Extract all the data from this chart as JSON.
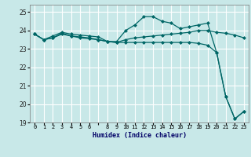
{
  "xlabel": "Humidex (Indice chaleur)",
  "background_color": "#c8e8e8",
  "grid_color": "#ffffff",
  "line_color": "#006666",
  "xlim": [
    -0.5,
    23.5
  ],
  "ylim": [
    19,
    25.4
  ],
  "yticks": [
    19,
    20,
    21,
    22,
    23,
    24,
    25
  ],
  "xtick_labels": [
    "0",
    "1",
    "2",
    "3",
    "4",
    "5",
    "6",
    "",
    "8",
    "9",
    "10",
    "11",
    "12",
    "13",
    "14",
    "15",
    "16",
    "17",
    "18",
    "19",
    "20",
    "21",
    "22",
    "23"
  ],
  "series": [
    [
      23.8,
      23.5,
      23.7,
      23.9,
      23.8,
      23.75,
      23.7,
      23.65,
      23.4,
      23.4,
      24.0,
      24.3,
      24.75,
      24.75,
      24.5,
      24.4,
      24.1,
      24.2,
      24.3,
      24.4,
      22.8,
      20.4,
      19.2,
      19.6
    ],
    [
      23.8,
      23.5,
      23.6,
      23.85,
      23.7,
      23.65,
      23.6,
      23.5,
      23.4,
      23.35,
      23.35,
      23.35,
      23.35,
      23.35,
      23.35,
      23.35,
      23.35,
      23.35,
      23.3,
      23.2,
      22.8,
      20.4,
      19.2,
      19.6
    ],
    [
      23.8,
      23.5,
      23.6,
      23.8,
      23.7,
      23.6,
      23.55,
      23.5,
      23.4,
      23.35,
      23.5,
      23.6,
      23.65,
      23.7,
      23.75,
      23.8,
      23.85,
      23.9,
      24.0,
      24.0,
      23.9,
      23.85,
      23.75,
      23.6
    ]
  ]
}
